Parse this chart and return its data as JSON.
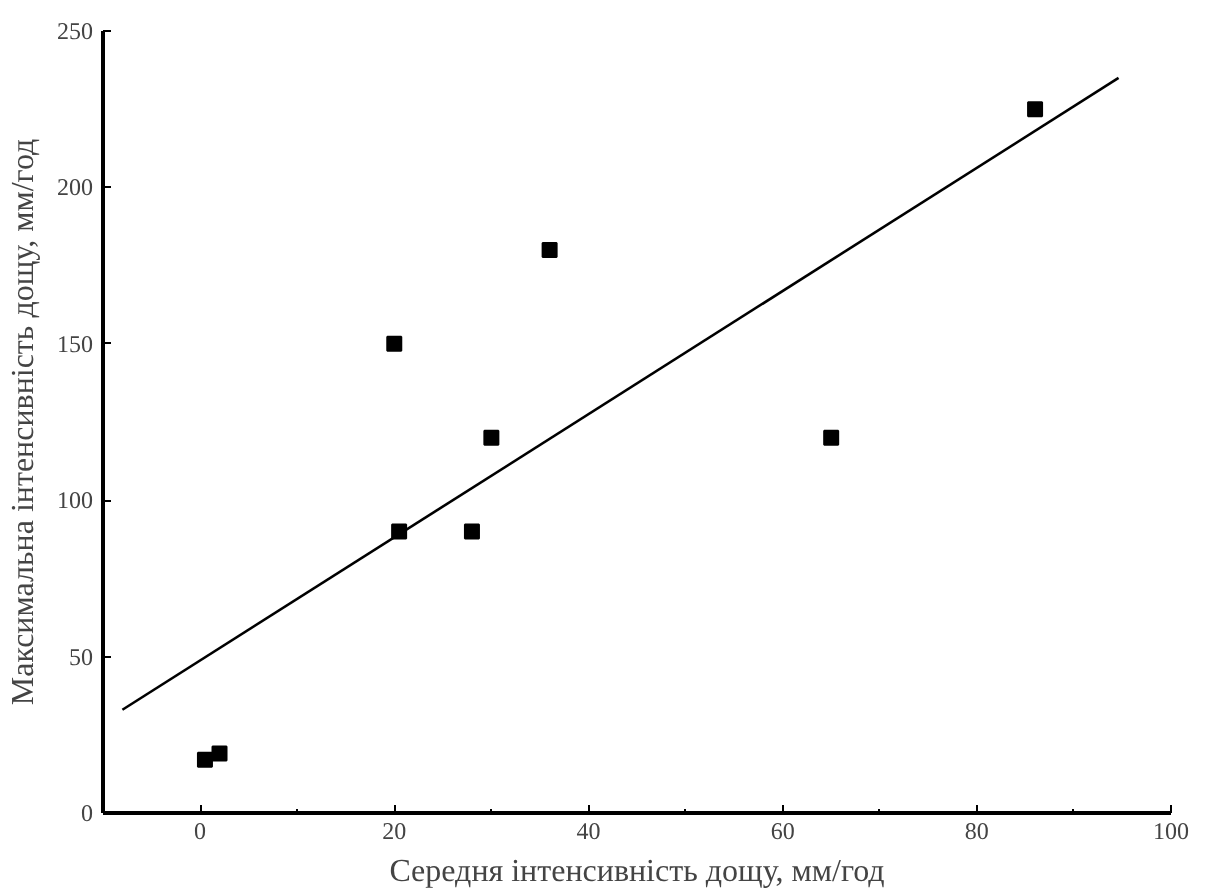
{
  "chart_data": {
    "type": "scatter",
    "xlabel": "Середня інтенсивність дощу, мм/год",
    "ylabel": "Максимальна інтенсивність дощу, мм/год",
    "xlim": [
      -10,
      100
    ],
    "ylim": [
      0,
      250
    ],
    "xticks": [
      0,
      20,
      40,
      60,
      80,
      100
    ],
    "yticks": [
      0,
      50,
      100,
      150,
      200,
      250
    ],
    "grid": false,
    "marker": "square",
    "series": [
      {
        "color": "#000000",
        "x": [
          0.5,
          2,
          20,
          20.5,
          28,
          30,
          36,
          65,
          86
        ],
        "values": [
          17,
          19,
          150,
          90,
          90,
          120,
          180,
          120,
          225
        ]
      },
      {
        "type": "line",
        "color": "#000000",
        "x": [
          -8,
          94.6
        ],
        "values": [
          33,
          235
        ],
        "marker": "none",
        "line_style": "solid"
      }
    ]
  }
}
